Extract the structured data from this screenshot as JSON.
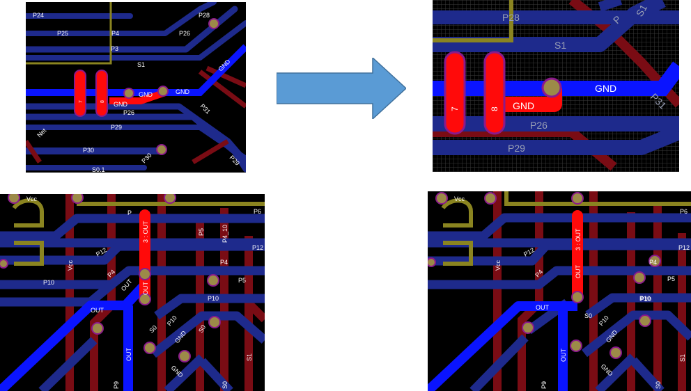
{
  "colors": {
    "board_bg": "#000000",
    "bottom_trace": "#1e2a8c",
    "top_trace": "#7a0c14",
    "active_net": "#0a14ff",
    "highlight_trace": "#ff0a0a",
    "pad_ring": "#8b1a8b",
    "pad_fill": "#9c8a48",
    "silkscreen": "#8a8420",
    "arrow": "#5a9bd5"
  },
  "top_left": {
    "labels": [
      "P24",
      "P25",
      "P4",
      "P26",
      "P28",
      "P3",
      "S1",
      "GND",
      "GND",
      "GND",
      "GND",
      "P26",
      "P29",
      "P30",
      "P31",
      "P29",
      "S0.1",
      "P30",
      "Net",
      "7",
      "8"
    ]
  },
  "top_right": {
    "labels": [
      "P28",
      "S1",
      "GND",
      "GND",
      "P26",
      "P29",
      "P31",
      "7",
      "8",
      "P",
      "S1"
    ]
  },
  "bottom_left": {
    "labels": [
      "Vcc",
      "P6",
      "P12",
      "P4",
      "P5",
      "P10",
      "3 : OUT",
      "OUT",
      "OUT",
      "OUT",
      "OUT",
      "S0",
      "P10",
      "S0",
      "GND",
      "GND",
      "P12",
      "P4",
      "P5",
      "P4_10",
      "P10",
      "S1",
      "Vcc",
      "P9",
      "S0",
      "P"
    ]
  },
  "bottom_right": {
    "labels": [
      "Vcc",
      "P6",
      "P12",
      "P4",
      "P5",
      "P10",
      "3 : OUT",
      "OUT",
      "OUT",
      "OUT",
      "S0",
      "P10",
      "GND",
      "GND",
      "P10",
      "S1",
      "P4",
      "P12",
      "Vcc",
      "P9",
      "S0"
    ]
  }
}
